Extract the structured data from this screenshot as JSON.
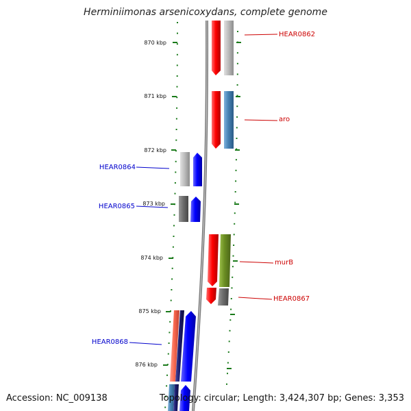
{
  "title": "Herminiimonas arsenicoxydans, complete genome",
  "footer": {
    "accession": "Accession: NC_009138",
    "summary": "Topology: circular; Length: 3,424,307 bp; Genes: 3,353"
  },
  "scale_unit": "kbp",
  "ticks": [
    "870 kbp",
    "871 kbp",
    "872 kbp",
    "873 kbp",
    "874 kbp",
    "875 kbp",
    "876 kbp"
  ],
  "gene_labels": [
    {
      "text": "HEAR0862",
      "side": "right",
      "color": "#cc0000"
    },
    {
      "text": "aro",
      "side": "right",
      "color": "#cc0000"
    },
    {
      "text": "HEAR0864",
      "side": "left",
      "color": "#0000cc"
    },
    {
      "text": "HEAR0865",
      "side": "left",
      "color": "#0000cc"
    },
    {
      "text": "murB",
      "side": "right",
      "color": "#cc0000"
    },
    {
      "text": "HEAR0867",
      "side": "right",
      "color": "#cc0000"
    },
    {
      "text": "HEAR0868",
      "side": "left",
      "color": "#0000cc"
    }
  ],
  "colors": {
    "forward_strand": "#ff0000",
    "reverse_strand": "#0000ff",
    "backbone": "#888888",
    "ruler": "#1a7a1a",
    "gray_feature": "#b8b8b8",
    "dark_gray_feature": "#6e6e6e",
    "steelblue_feature": "#4682b4",
    "olive_feature": "#6b8e23",
    "salmon_feature": "#fa6a50",
    "navy_feature": "#1c1c6e"
  }
}
